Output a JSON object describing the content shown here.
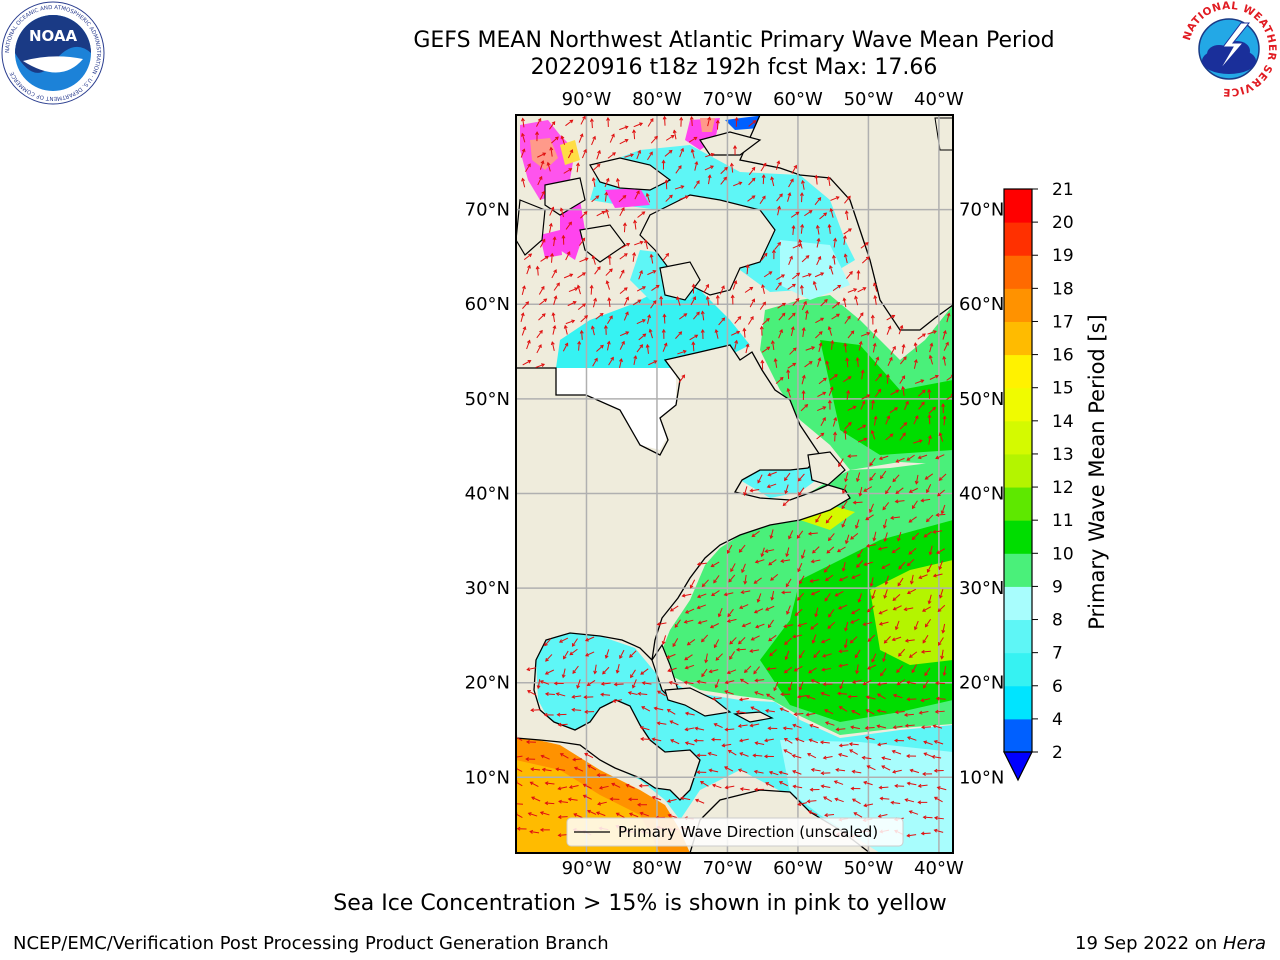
{
  "header": {
    "title_line1": "GEFS MEAN Northwest Atlantic Primary Wave Mean Period",
    "title_line2": "20220916 t18z 192h fcst   Max: 17.66"
  },
  "map": {
    "projection": "plate-carree",
    "lon_range": [
      -100,
      -38
    ],
    "lat_range": [
      2,
      80
    ],
    "x_ticks": [
      "90°W",
      "80°W",
      "70°W",
      "60°W",
      "50°W",
      "40°W"
    ],
    "y_ticks": [
      "70°N",
      "60°N",
      "50°N",
      "40°N",
      "30°N",
      "20°N",
      "10°N"
    ],
    "land_color": "#efecdc",
    "ocean_mask_color": "#ffffff",
    "legend_label": "Primary Wave Direction (unscaled)",
    "arrow_color": "#e01010"
  },
  "colorbar": {
    "title": "Primary Wave Mean Period [s]",
    "ticks": [
      "2",
      "4",
      "6",
      "7",
      "8",
      "9",
      "10",
      "11",
      "12",
      "13",
      "14",
      "15",
      "16",
      "17",
      "18",
      "19",
      "20",
      "21"
    ],
    "colors": [
      "#0060ff",
      "#00e4ff",
      "#36f2f2",
      "#5ef6f6",
      "#a8fdfd",
      "#4af07a",
      "#00dd00",
      "#5ee800",
      "#b4f400",
      "#d4fa00",
      "#f0fb00",
      "#fff200",
      "#ffbb00",
      "#ff9200",
      "#ff6a00",
      "#ff3000",
      "#ff0000"
    ],
    "extend_color": "#0000ff"
  },
  "logos": {
    "noaa_text": "NOAA",
    "noaa_ring_text": "NATIONAL OCEANIC AND ATMOSPHERIC ADMINISTRATION · U.S. DEPARTMENT OF COMMERCE",
    "nws_ring_text": "NATIONAL WEATHER SERVICE"
  },
  "footer": {
    "note": "Sea Ice Concentration > 15% is shown in pink to yellow",
    "credit_left": "NCEP/EMC/Verification Post Processing Product Generation Branch",
    "credit_right_prefix": "19 Sep 2022 on ",
    "credit_right_host": "Hera"
  }
}
